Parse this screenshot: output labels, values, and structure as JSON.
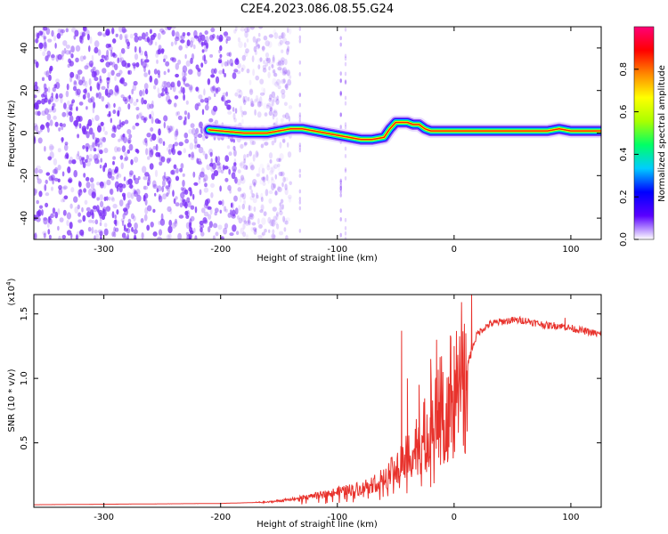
{
  "title": "C2E4.2023.086.08.55.G24",
  "colors": {
    "spectrum_base": "#7b2ff7",
    "snr_line": "#e8322c",
    "colorbar": [
      "#ffffff",
      "#5a00ff",
      "#0000ff",
      "#00ccff",
      "#00ff66",
      "#aaff00",
      "#ffff00",
      "#ff8800",
      "#ff0000",
      "#ff0077"
    ]
  },
  "chart_data": [
    {
      "type": "heatmap",
      "name": "spectrogram",
      "xlabel": "Height of straight line (km)",
      "ylabel": "Frequency (Hz)",
      "xlim": [
        -360,
        126
      ],
      "ylim": [
        -50,
        50
      ],
      "xticks": [
        -300,
        -200,
        -100,
        0,
        100
      ],
      "xtick_labels": [
        "-300",
        "-200",
        "-100",
        "0",
        "100"
      ],
      "yticks": [
        -40,
        -20,
        0,
        20,
        40
      ],
      "ytick_labels": [
        "-40",
        "-20",
        "0",
        "20",
        "40"
      ],
      "noise_region_x": [
        -360,
        -160
      ],
      "signal_track": {
        "x": [
          -210,
          -180,
          -160,
          -150,
          -140,
          -130,
          -120,
          -110,
          -100,
          -90,
          -80,
          -70,
          -60,
          -55,
          -50,
          -45,
          -40,
          -35,
          -30,
          -25,
          -20,
          -10,
          0,
          20,
          40,
          60,
          80,
          90,
          100,
          110,
          126
        ],
        "y": [
          1.5,
          0,
          0,
          1,
          2,
          2,
          1,
          0,
          -1,
          -2,
          -3,
          -3,
          -2,
          2,
          5,
          5,
          5,
          4,
          4,
          2,
          1,
          1,
          1,
          1,
          1,
          1,
          1,
          2,
          1,
          1,
          1
        ]
      },
      "colorbar": {
        "label": "Normalized spectral amplitude",
        "range": [
          0,
          1
        ],
        "ticks": [
          0.0,
          0.2,
          0.4,
          0.6,
          0.8
        ],
        "tick_labels": [
          "0.0",
          "0.2",
          "0.4",
          "0.6",
          "0.8"
        ]
      }
    },
    {
      "type": "line",
      "name": "snr",
      "xlabel": "Height of straight line (km)",
      "ylabel": "SNR (10 * v/v)",
      "multiplier": "(x10",
      "multiplier_exp": "4",
      "xlim": [
        -360,
        126
      ],
      "ylim": [
        0,
        1.65
      ],
      "xticks": [
        -300,
        -200,
        -100,
        0,
        100
      ],
      "xtick_labels": [
        "-300",
        "-200",
        "-100",
        "0",
        "100"
      ],
      "yticks": [
        0.5,
        1.0,
        1.5
      ],
      "ytick_labels": [
        "0.5",
        "1.0",
        "1.5"
      ],
      "envelope": {
        "x": [
          -360,
          -200,
          -160,
          -140,
          -120,
          -100,
          -80,
          -60,
          -50,
          -40,
          -30,
          -20,
          -10,
          0,
          10,
          15,
          20,
          30,
          40,
          50,
          60,
          70,
          80,
          90,
          100,
          110,
          126
        ],
        "y": [
          0.02,
          0.03,
          0.04,
          0.06,
          0.09,
          0.12,
          0.15,
          0.22,
          0.3,
          0.42,
          0.5,
          0.62,
          0.78,
          0.9,
          1.05,
          1.22,
          1.35,
          1.42,
          1.44,
          1.45,
          1.45,
          1.43,
          1.41,
          1.41,
          1.39,
          1.37,
          1.34
        ]
      },
      "spikes": [
        [
          -45,
          1.37
        ],
        [
          -40,
          1.0
        ],
        [
          -30,
          0.95
        ],
        [
          -20,
          1.15
        ],
        [
          -15,
          1.3
        ],
        [
          0,
          1.25
        ],
        [
          10,
          1.35
        ],
        [
          15,
          1.65
        ],
        [
          95,
          1.47
        ]
      ]
    }
  ]
}
